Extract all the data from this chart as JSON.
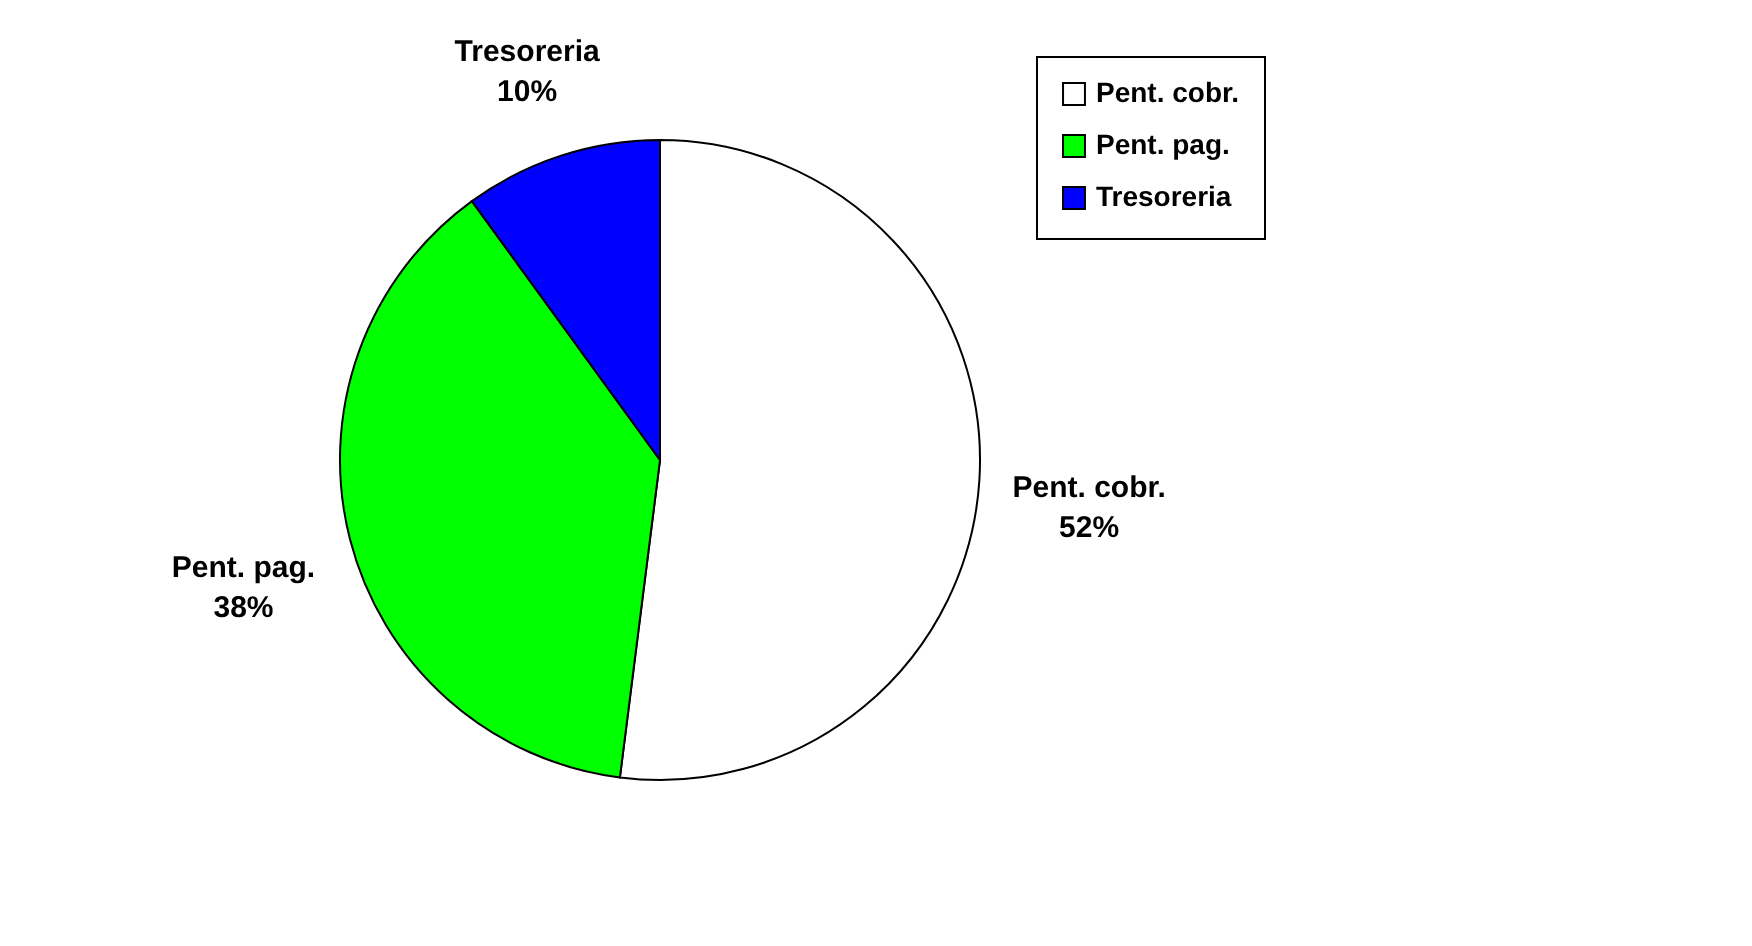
{
  "chart_data": {
    "type": "pie",
    "categories": [
      "Pent. cobr.",
      "Pent. pag.",
      "Tresoreria"
    ],
    "values": [
      52,
      38,
      10
    ],
    "colors": [
      "#ffffff",
      "#00ff00",
      "#0000ff"
    ],
    "value_labels": [
      "52%",
      "38%",
      "10%"
    ],
    "legend": "top right"
  }
}
